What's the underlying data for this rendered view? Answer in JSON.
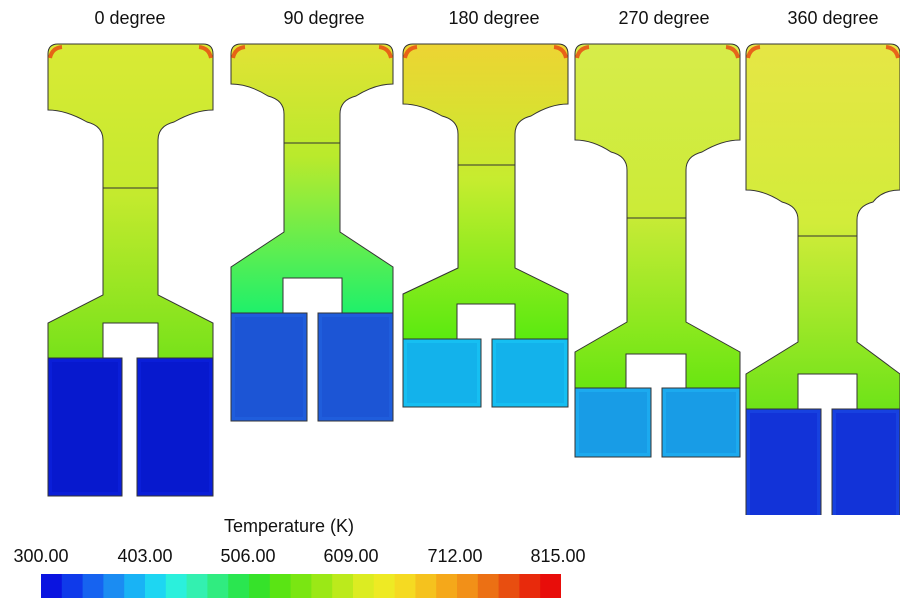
{
  "panels": [
    {
      "label": "0 degree",
      "fills": {
        "head": "#d9ea35",
        "stem": "#c4ea2e",
        "yoke": "#78e21a",
        "base": "#0a1ed8",
        "basedark": "#0616c7"
      }
    },
    {
      "label": "90 degree",
      "fills": {
        "head": "#e2e235",
        "stem": "#b9ea2c",
        "yoke": "#1ff06a",
        "base": "#1f5ddc",
        "basedark": "#1a4fcf"
      }
    },
    {
      "label": "180 degree",
      "fills": {
        "head": "#edd433",
        "stem": "#c6ec2f",
        "yoke": "#5bea10",
        "base": "#16bff2",
        "basedark": "#12a8e6"
      }
    },
    {
      "label": "270 degree",
      "fills": {
        "head": "#d7ec4a",
        "stem": "#cceb38",
        "yoke": "#69e611",
        "base": "#1caaef",
        "basedark": "#1690df"
      }
    },
    {
      "label": "360 degree",
      "fills": {
        "head": "#e6e645",
        "stem": "#d2ec3a",
        "yoke": "#6ee318",
        "base": "#1741e0",
        "basedark": "#0f28d2"
      }
    }
  ],
  "hot_edge_color": "#e8430f",
  "legend": {
    "title": "Temperature (K)",
    "ticks": [
      "300.00",
      "403.00",
      "506.00",
      "609.00",
      "712.00",
      "815.00"
    ],
    "min": 300,
    "max": 815,
    "colors": [
      "#0a14e0",
      "#0f3aea",
      "#1663f0",
      "#1b8cf2",
      "#19b3f5",
      "#1ed6f2",
      "#2bf0dc",
      "#33f0b0",
      "#30ec80",
      "#2ae650",
      "#36e22a",
      "#5ae414",
      "#7ae612",
      "#9be816",
      "#bcea1c",
      "#dcec22",
      "#eeea24",
      "#f5da22",
      "#f5c21e",
      "#f5a81a",
      "#f29018",
      "#ec7014",
      "#e84e10",
      "#e82a0c",
      "#e80d0a"
    ]
  }
}
